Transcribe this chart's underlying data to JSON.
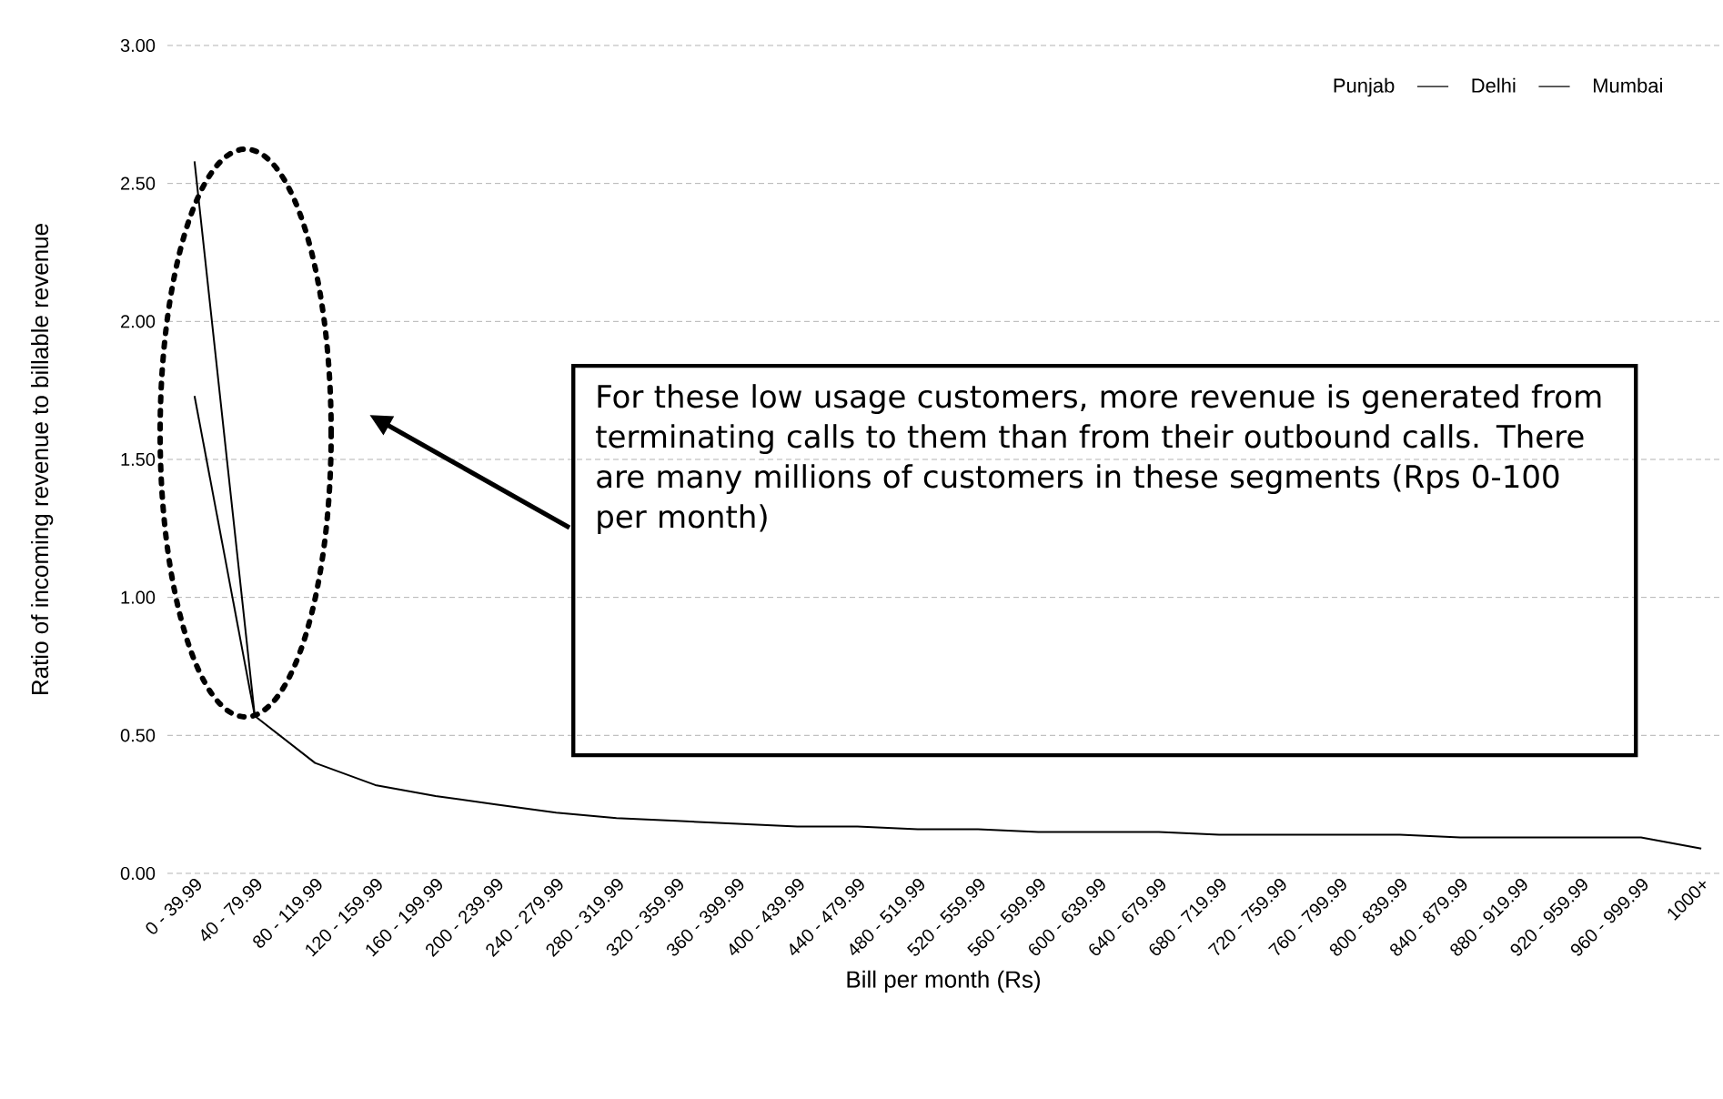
{
  "chart_data": {
    "type": "line",
    "xlabel": "Bill per month (Rs)",
    "ylabel": "Ratio of incoming revenue to billable revenue",
    "categories": [
      "0 - 39.99",
      "40 - 79.99",
      "80 - 119.99",
      "120 - 159.99",
      "160 - 199.99",
      "200 - 239.99",
      "240 - 279.99",
      "280 - 319.99",
      "320 - 359.99",
      "360 - 399.99",
      "400 - 439.99",
      "440 - 479.99",
      "480 - 519.99",
      "520 - 559.99",
      "560 - 599.99",
      "600 - 639.99",
      "640 - 679.99",
      "680 - 719.99",
      "720 - 759.99",
      "760 - 799.99",
      "800 - 839.99",
      "840 - 879.99",
      "880 - 919.99",
      "920 - 959.99",
      "960 - 999.99",
      "1000+"
    ],
    "series": [
      {
        "name": "Punjab",
        "values": [
          null,
          null,
          null,
          null,
          null,
          null,
          null,
          null,
          null,
          null,
          null,
          null,
          null,
          null,
          null,
          null,
          null,
          null,
          null,
          null,
          null,
          null,
          null,
          null,
          null,
          null
        ]
      },
      {
        "name": "Delhi",
        "color": "#000000",
        "values": [
          2.58,
          0.57,
          0.4,
          0.32,
          0.28,
          0.25,
          0.22,
          0.2,
          0.19,
          0.18,
          0.17,
          0.17,
          0.16,
          0.16,
          0.15,
          0.15,
          0.15,
          0.14,
          0.14,
          0.14,
          0.14,
          0.13,
          0.13,
          0.13,
          0.13,
          0.09
        ]
      },
      {
        "name": "Mumbai",
        "color": "#000000",
        "values": [
          1.73,
          0.57,
          null,
          null,
          null,
          null,
          null,
          null,
          null,
          null,
          null,
          null,
          null,
          null,
          null,
          null,
          null,
          null,
          null,
          null,
          null,
          null,
          null,
          null,
          null,
          null
        ]
      }
    ],
    "ylim": [
      0,
      3
    ],
    "yticks": [
      {
        "value": 0,
        "label": "0.00"
      },
      {
        "value": 0.5,
        "label": "0.50"
      },
      {
        "value": 1,
        "label": "1.00"
      },
      {
        "value": 1.5,
        "label": "1.50"
      },
      {
        "value": 2,
        "label": "2.00"
      },
      {
        "value": 2.5,
        "label": "2.50"
      },
      {
        "value": 3,
        "label": "3.00"
      }
    ],
    "grid": "y",
    "legend": "top right",
    "annotations": [
      "For these low usage customers, more revenue is generated from terminating calls to them than from their outbound calls.  There are many millions of customers in these segments (Rps 0-100 per month)"
    ]
  }
}
